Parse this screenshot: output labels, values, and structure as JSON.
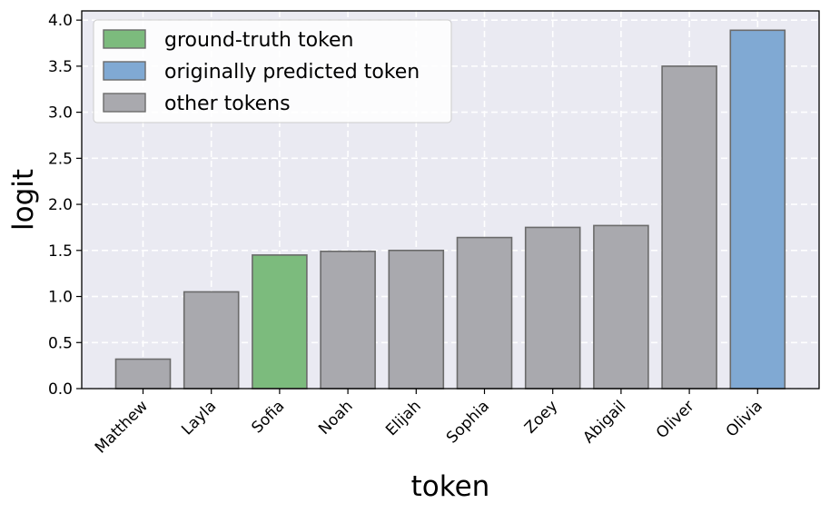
{
  "chart_data": {
    "type": "bar",
    "categories": [
      "Matthew",
      "Layla",
      "Sofia",
      "Noah",
      "Elijah",
      "Sophia",
      "Zoey",
      "Abigail",
      "Oliver",
      "Olivia"
    ],
    "values": [
      0.32,
      1.05,
      1.45,
      1.49,
      1.5,
      1.64,
      1.75,
      1.77,
      3.5,
      3.89
    ],
    "bar_groups": [
      "other",
      "other",
      "ground",
      "other",
      "other",
      "other",
      "other",
      "other",
      "other",
      "predicted"
    ],
    "xlabel": "token",
    "ylabel": "logit",
    "ylim": [
      0,
      4.1
    ],
    "yticks": [
      "0.0",
      "0.5",
      "1.0",
      "1.5",
      "2.0",
      "2.5",
      "3.0",
      "3.5",
      "4.0"
    ],
    "grid": true,
    "legend_position": "top-left",
    "legend": [
      {
        "key": "ground",
        "label": "ground-truth token",
        "color": "#7cbb7d"
      },
      {
        "key": "predicted",
        "label": "originally predicted token",
        "color": "#80a9d3"
      },
      {
        "key": "other",
        "label": "other tokens",
        "color": "#a9a9ae"
      }
    ]
  }
}
